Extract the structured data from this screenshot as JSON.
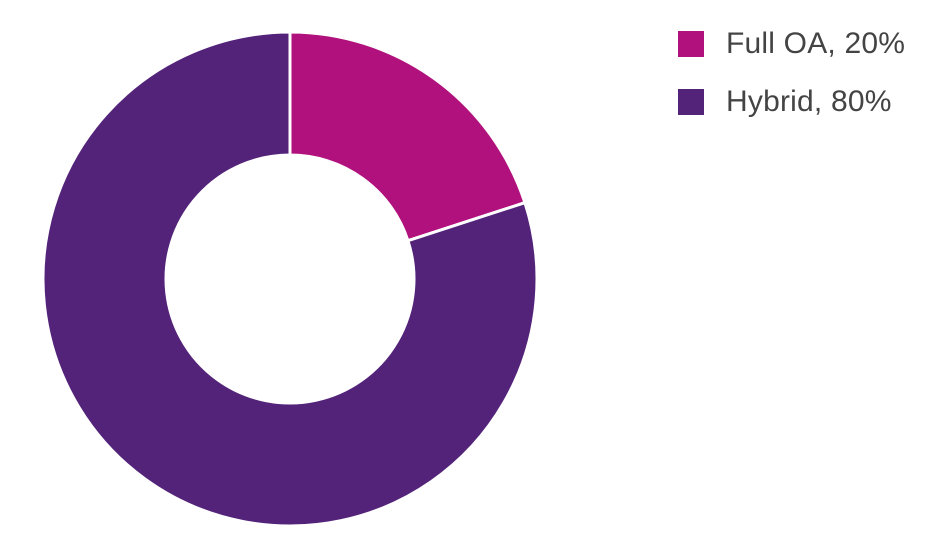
{
  "chart_data": {
    "type": "pie",
    "donut": true,
    "title": "",
    "legend_position": "top-right",
    "series": [
      {
        "name": "Full OA, 20%",
        "value": 20,
        "color": "#b0117c"
      },
      {
        "name": "Hybrid, 80%",
        "value": 80,
        "color": "#53237a"
      }
    ]
  }
}
